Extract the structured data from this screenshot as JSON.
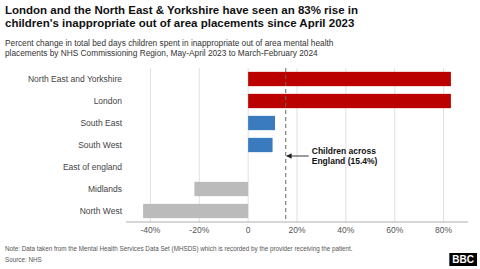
{
  "chart_data": {
    "type": "bar",
    "orientation": "horizontal",
    "title": "London and the North East & Yorkshire have seen an 83% rise in\nchildren's inappropriate out of area placements since April 2023",
    "subtitle": "Percent change in total bed days children spent in inappropriate out of area mental health\nplacements by NHS Commissioning Region, May-April 2023 to March-February 2024",
    "categories": [
      "North East and Yorkshire",
      "London",
      "South East",
      "South West",
      "East of england",
      "Midlands",
      "North West"
    ],
    "values": [
      83,
      83,
      11,
      10,
      0,
      -22,
      -43
    ],
    "colors": [
      "#bb0000",
      "#bb0000",
      "#3a7abf",
      "#3a7abf",
      "#bbbbbb",
      "#bbbbbb",
      "#bbbbbb"
    ],
    "xlim": [
      -50,
      90
    ],
    "xticks": [
      {
        "value": -40,
        "label": "-40%"
      },
      {
        "value": -20,
        "label": "-20%"
      },
      0,
      {
        "value": 20,
        "label": "20%"
      },
      {
        "value": 40,
        "label": "40%"
      },
      {
        "value": 60,
        "label": "60%"
      },
      {
        "value": 80,
        "label": "80%"
      }
    ],
    "grid": true,
    "annotations": [
      {
        "text": "Children across\nEngland (15.4%)",
        "x": 15.4
      }
    ],
    "note": "Note: Data taken from the Mental Health Services Data Set (MHSDS) which is recorded by the provider receiving the patient.",
    "source": "Source: NHS",
    "logo": "BBC"
  }
}
